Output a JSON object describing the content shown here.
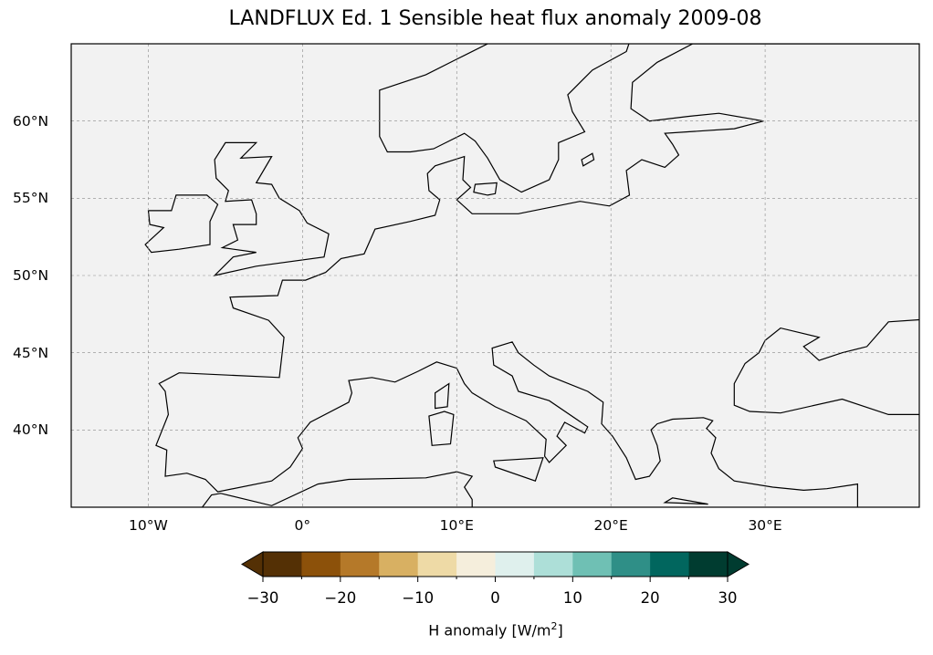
{
  "title": "LANDFLUX Ed. 1 Sensible heat flux anomaly 2009-08",
  "map": {
    "extent_lon": [
      -15,
      40
    ],
    "extent_lat": [
      35,
      65
    ],
    "ocean_color": "#f2f2f2",
    "x_ticks": [
      {
        "lon": -10,
        "label": "10°W"
      },
      {
        "lon": 0,
        "label": "0°"
      },
      {
        "lon": 10,
        "label": "10°E"
      },
      {
        "lon": 20,
        "label": "20°E"
      },
      {
        "lon": 30,
        "label": "30°E"
      }
    ],
    "y_ticks": [
      {
        "lat": 60,
        "label": "60°N"
      },
      {
        "lat": 55,
        "label": "55°N"
      },
      {
        "lat": 50,
        "label": "50°N"
      },
      {
        "lat": 45,
        "label": "45°N"
      },
      {
        "lat": 40,
        "label": "40°N"
      }
    ]
  },
  "colorbar": {
    "min": -30,
    "max": 30,
    "step": 5,
    "colors": [
      "#543005",
      "#8c510a",
      "#b57929",
      "#d8b062",
      "#eedaa6",
      "#f5eedc",
      "#dff0ed",
      "#addfd8",
      "#6fc0b4",
      "#2f8f87",
      "#01665e",
      "#003c30"
    ],
    "ticks": [
      {
        "value": -30,
        "label": "−30"
      },
      {
        "value": -20,
        "label": "−20"
      },
      {
        "value": -10,
        "label": "−10"
      },
      {
        "value": 0,
        "label": "0"
      },
      {
        "value": 10,
        "label": "10"
      },
      {
        "value": 20,
        "label": "20"
      },
      {
        "value": 30,
        "label": "30"
      }
    ],
    "label_main": "H anomaly [W/m",
    "label_sup": "2",
    "label_end": "]"
  }
}
